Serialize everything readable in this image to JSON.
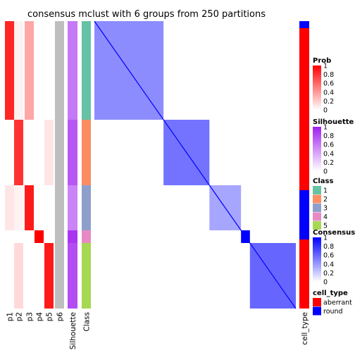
{
  "chart_data": {
    "type": "heatmap",
    "title": "consensus mclust with 6 groups from 250 partitions",
    "annotation_columns": [
      "p1",
      "p2",
      "p3",
      "p4",
      "p5",
      "p6",
      "Silhouette",
      "Class"
    ],
    "right_annotation_label": "cell_type",
    "groups": [
      {
        "class": 1,
        "probs": [
          0.85,
          0.05,
          0.35,
          0.0,
          0.0,
          0.0
        ],
        "silhouette": 0.6,
        "consensus_level": 0.45
      },
      {
        "class": 2,
        "probs": [
          0.0,
          0.8,
          0.0,
          0.0,
          0.1,
          0.0
        ],
        "silhouette": 0.75,
        "consensus_level": 0.55
      },
      {
        "class": 3,
        "probs": [
          0.1,
          0.05,
          0.9,
          0.0,
          0.0,
          0.0
        ],
        "silhouette": 0.55,
        "consensus_level": 0.35
      },
      {
        "class": 4,
        "probs": [
          0.0,
          0.0,
          0.0,
          1.0,
          0.0,
          0.0
        ],
        "silhouette": 0.9,
        "consensus_level": 1.0
      },
      {
        "class": 5,
        "probs": [
          0.0,
          0.15,
          0.0,
          0.0,
          0.9,
          0.0
        ],
        "silhouette": 0.8,
        "consensus_level": 0.6
      }
    ],
    "legends": {
      "prob": {
        "title": "Prob",
        "ticks": [
          "1",
          "0.8",
          "0.6",
          "0.4",
          "0.2",
          "0"
        ],
        "low_color": "#ffffff",
        "high_color": "#ff0000"
      },
      "silhouette": {
        "title": "Silhouette",
        "ticks": [
          "1",
          "0.8",
          "0.6",
          "0.4",
          "0.2",
          "0"
        ],
        "low_color": "#ffffff",
        "high_color": "#a020f0"
      },
      "class": {
        "title": "Class",
        "items": [
          {
            "label": "1",
            "color": "#66c2a5"
          },
          {
            "label": "2",
            "color": "#fc8d62"
          },
          {
            "label": "3",
            "color": "#8da0cb"
          },
          {
            "label": "4",
            "color": "#e78ac3"
          },
          {
            "label": "5",
            "color": "#a6d854"
          }
        ]
      },
      "consensus": {
        "title": "Consensus",
        "ticks": [
          "1",
          "0.8",
          "0.6",
          "0.4",
          "0.2",
          "0"
        ],
        "low_color": "#ffffff",
        "high_color": "#0000ff"
      },
      "cell_type": {
        "title": "cell_type",
        "items": [
          {
            "label": "aberrant",
            "color": "#ff0000"
          },
          {
            "label": "round",
            "color": "#0000ff"
          }
        ]
      }
    }
  }
}
